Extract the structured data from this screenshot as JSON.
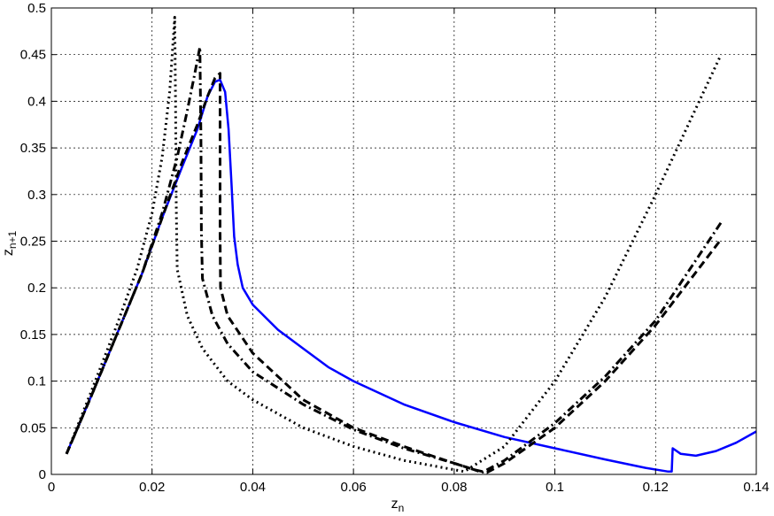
{
  "chart_data": {
    "type": "line",
    "xlabel": "z",
    "xlabel_sub": "n",
    "ylabel": "z",
    "ylabel_sub": "n+1",
    "xlim": [
      0,
      0.14
    ],
    "ylim": [
      0,
      0.5
    ],
    "grid": true,
    "x_ticks": [
      0,
      0.02,
      0.04,
      0.06,
      0.08,
      0.1,
      0.12,
      0.14
    ],
    "x_tick_labels": [
      "0",
      "0.02",
      "0.04",
      "0.06",
      "0.08",
      "0.1",
      "0.12",
      "0.14"
    ],
    "y_ticks": [
      0,
      0.05,
      0.1,
      0.15,
      0.2,
      0.25,
      0.3,
      0.35,
      0.4,
      0.45,
      0.5
    ],
    "y_tick_labels": [
      "0",
      "0.05",
      "0.1",
      "0.15",
      "0.2",
      "0.25",
      "0.3",
      "0.35",
      "0.4",
      "0.45",
      "0.5"
    ],
    "series": [
      {
        "style": "solid",
        "color": "#0000ff",
        "points": [
          [
            0.003,
            0.022
          ],
          [
            0.008,
            0.085
          ],
          [
            0.013,
            0.15
          ],
          [
            0.018,
            0.215
          ],
          [
            0.022,
            0.275
          ],
          [
            0.026,
            0.33
          ],
          [
            0.029,
            0.37
          ],
          [
            0.031,
            0.405
          ],
          [
            0.0325,
            0.421
          ],
          [
            0.0335,
            0.423
          ],
          [
            0.0345,
            0.41
          ],
          [
            0.0352,
            0.37
          ],
          [
            0.0358,
            0.31
          ],
          [
            0.0363,
            0.255
          ],
          [
            0.037,
            0.225
          ],
          [
            0.038,
            0.2
          ],
          [
            0.04,
            0.182
          ],
          [
            0.045,
            0.155
          ],
          [
            0.05,
            0.135
          ],
          [
            0.055,
            0.115
          ],
          [
            0.06,
            0.1
          ],
          [
            0.07,
            0.075
          ],
          [
            0.08,
            0.056
          ],
          [
            0.09,
            0.04
          ],
          [
            0.1,
            0.028
          ],
          [
            0.11,
            0.016
          ],
          [
            0.118,
            0.007
          ],
          [
            0.1225,
            0.003
          ],
          [
            0.1232,
            0.003
          ],
          [
            0.1234,
            0.028
          ],
          [
            0.125,
            0.022
          ],
          [
            0.128,
            0.02
          ],
          [
            0.132,
            0.025
          ],
          [
            0.136,
            0.034
          ],
          [
            0.14,
            0.046
          ]
        ]
      },
      {
        "style": "dashed",
        "color": "#000000",
        "points": [
          [
            0.003,
            0.022
          ],
          [
            0.008,
            0.085
          ],
          [
            0.013,
            0.15
          ],
          [
            0.018,
            0.215
          ],
          [
            0.022,
            0.275
          ],
          [
            0.026,
            0.335
          ],
          [
            0.029,
            0.375
          ],
          [
            0.031,
            0.405
          ],
          [
            0.0325,
            0.425
          ],
          [
            0.0335,
            0.43
          ],
          [
            0.0335,
            0.26
          ],
          [
            0.0336,
            0.2
          ],
          [
            0.035,
            0.17
          ],
          [
            0.04,
            0.13
          ],
          [
            0.05,
            0.08
          ],
          [
            0.06,
            0.05
          ],
          [
            0.07,
            0.03
          ],
          [
            0.08,
            0.012
          ],
          [
            0.084,
            0.005
          ],
          [
            0.0865,
            0.002
          ],
          [
            0.09,
            0.012
          ],
          [
            0.1,
            0.05
          ],
          [
            0.11,
            0.1
          ],
          [
            0.12,
            0.16
          ],
          [
            0.133,
            0.252
          ]
        ]
      },
      {
        "style": "dashdot",
        "color": "#000000",
        "points": [
          [
            0.003,
            0.022
          ],
          [
            0.008,
            0.085
          ],
          [
            0.013,
            0.15
          ],
          [
            0.018,
            0.215
          ],
          [
            0.022,
            0.28
          ],
          [
            0.025,
            0.34
          ],
          [
            0.027,
            0.39
          ],
          [
            0.0285,
            0.43
          ],
          [
            0.0295,
            0.458
          ],
          [
            0.0297,
            0.36
          ],
          [
            0.0298,
            0.26
          ],
          [
            0.03,
            0.21
          ],
          [
            0.032,
            0.17
          ],
          [
            0.035,
            0.14
          ],
          [
            0.04,
            0.11
          ],
          [
            0.05,
            0.075
          ],
          [
            0.06,
            0.048
          ],
          [
            0.07,
            0.028
          ],
          [
            0.08,
            0.012
          ],
          [
            0.084,
            0.005
          ],
          [
            0.0855,
            0.002
          ],
          [
            0.09,
            0.015
          ],
          [
            0.1,
            0.055
          ],
          [
            0.11,
            0.105
          ],
          [
            0.12,
            0.165
          ],
          [
            0.133,
            0.27
          ]
        ]
      },
      {
        "style": "dotted",
        "color": "#000000",
        "points": [
          [
            0.003,
            0.022
          ],
          [
            0.008,
            0.09
          ],
          [
            0.013,
            0.16
          ],
          [
            0.017,
            0.22
          ],
          [
            0.02,
            0.28
          ],
          [
            0.022,
            0.34
          ],
          [
            0.0235,
            0.41
          ],
          [
            0.0245,
            0.49
          ],
          [
            0.0247,
            0.38
          ],
          [
            0.0248,
            0.29
          ],
          [
            0.025,
            0.22
          ],
          [
            0.027,
            0.17
          ],
          [
            0.03,
            0.135
          ],
          [
            0.035,
            0.1
          ],
          [
            0.04,
            0.08
          ],
          [
            0.05,
            0.05
          ],
          [
            0.06,
            0.03
          ],
          [
            0.07,
            0.015
          ],
          [
            0.08,
            0.005
          ],
          [
            0.082,
            0.003
          ],
          [
            0.09,
            0.03
          ],
          [
            0.1,
            0.1
          ],
          [
            0.11,
            0.19
          ],
          [
            0.12,
            0.3
          ],
          [
            0.133,
            0.45
          ]
        ]
      }
    ]
  }
}
